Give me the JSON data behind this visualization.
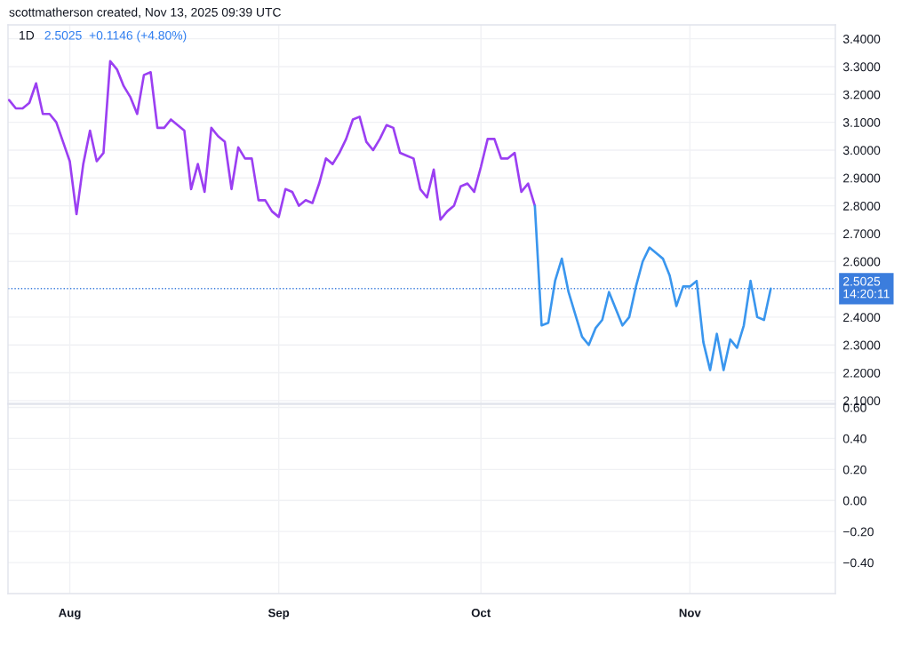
{
  "chart_data": [
    {
      "type": "line",
      "title": "scottmatherson created, Nov 13, 2025 09:39 UTC",
      "subtitle": "1D",
      "annotations": [
        "2.5025  +0.1146 (+4.80%)",
        "14:20:11"
      ],
      "series": [
        {
          "color": "#9b3ff2",
          "x": [
            "2025-07-23",
            "2025-07-24",
            "2025-07-25",
            "2025-07-26",
            "2025-07-27",
            "2025-07-28",
            "2025-07-29",
            "2025-07-30",
            "2025-07-31",
            "2025-08-01",
            "2025-08-02",
            "2025-08-03",
            "2025-08-04",
            "2025-08-05",
            "2025-08-06",
            "2025-08-07",
            "2025-08-08",
            "2025-08-09",
            "2025-08-10",
            "2025-08-11",
            "2025-08-12",
            "2025-08-13",
            "2025-08-14",
            "2025-08-15",
            "2025-08-16",
            "2025-08-17",
            "2025-08-18",
            "2025-08-19",
            "2025-08-20",
            "2025-08-21",
            "2025-08-22",
            "2025-08-23",
            "2025-08-24",
            "2025-08-25",
            "2025-08-26",
            "2025-08-27",
            "2025-08-28",
            "2025-08-29",
            "2025-08-30",
            "2025-08-31",
            "2025-09-01",
            "2025-09-02",
            "2025-09-03",
            "2025-09-04",
            "2025-09-05",
            "2025-09-06",
            "2025-09-07",
            "2025-09-08",
            "2025-09-09",
            "2025-09-10",
            "2025-09-11",
            "2025-09-12",
            "2025-09-13",
            "2025-09-14",
            "2025-09-15",
            "2025-09-16",
            "2025-09-17",
            "2025-09-18",
            "2025-09-19",
            "2025-09-20",
            "2025-09-21",
            "2025-09-22",
            "2025-09-23",
            "2025-09-24",
            "2025-09-25",
            "2025-09-26",
            "2025-09-27",
            "2025-09-28",
            "2025-09-29",
            "2025-09-30",
            "2025-10-01",
            "2025-10-02",
            "2025-10-03",
            "2025-10-04",
            "2025-10-05",
            "2025-10-06",
            "2025-10-07",
            "2025-10-08",
            "2025-10-09"
          ],
          "values": [
            3.18,
            3.15,
            3.15,
            3.17,
            3.24,
            3.13,
            3.13,
            3.1,
            3.03,
            2.96,
            2.77,
            2.95,
            3.07,
            2.96,
            2.99,
            3.32,
            3.29,
            3.23,
            3.19,
            3.13,
            3.27,
            3.28,
            3.08,
            3.08,
            3.11,
            3.09,
            3.07,
            2.86,
            2.95,
            2.85,
            3.08,
            3.05,
            3.03,
            2.86,
            3.01,
            2.97,
            2.97,
            2.82,
            2.82,
            2.78,
            2.76,
            2.86,
            2.85,
            2.8,
            2.82,
            2.81,
            2.88,
            2.97,
            2.95,
            2.99,
            3.04,
            3.11,
            3.12,
            3.03,
            3.0,
            3.04,
            3.09,
            3.08,
            2.99,
            2.98,
            2.97,
            2.86,
            2.83,
            2.93,
            2.75,
            2.78,
            2.8,
            2.87,
            2.88,
            2.85,
            2.94,
            3.04,
            3.04,
            2.97,
            2.97,
            2.99,
            2.85,
            2.88,
            2.8
          ]
        },
        {
          "color": "#3a96ee",
          "x": [
            "2025-10-09",
            "2025-10-10",
            "2025-10-11",
            "2025-10-12",
            "2025-10-13",
            "2025-10-14",
            "2025-10-15",
            "2025-10-16",
            "2025-10-17",
            "2025-10-18",
            "2025-10-19",
            "2025-10-20",
            "2025-10-21",
            "2025-10-22",
            "2025-10-23",
            "2025-10-24",
            "2025-10-25",
            "2025-10-26",
            "2025-10-27",
            "2025-10-28",
            "2025-10-29",
            "2025-10-30",
            "2025-10-31",
            "2025-11-01",
            "2025-11-02",
            "2025-11-03",
            "2025-11-04",
            "2025-11-05",
            "2025-11-06",
            "2025-11-07",
            "2025-11-08",
            "2025-11-09",
            "2025-11-10",
            "2025-11-11",
            "2025-11-12",
            "2025-11-13"
          ],
          "values": [
            2.8,
            2.37,
            2.38,
            2.53,
            2.61,
            2.49,
            2.41,
            2.33,
            2.3,
            2.36,
            2.39,
            2.49,
            2.43,
            2.37,
            2.4,
            2.51,
            2.6,
            2.65,
            2.63,
            2.61,
            2.55,
            2.44,
            2.51,
            2.51,
            2.53,
            2.31,
            2.21,
            2.34,
            2.21,
            2.32,
            2.29,
            2.37,
            2.53,
            2.4,
            2.39,
            2.5025
          ]
        }
      ],
      "xlim": [
        "2025-07-22T20:00",
        "2025-11-22T14:00"
      ],
      "xticks": [
        {
          "value": "2025-08-01",
          "label": null
        },
        {
          "value": "2025-09-01",
          "label": null
        },
        {
          "value": "2025-10-01",
          "label": null
        },
        {
          "value": "2025-11-01",
          "label": null
        }
      ],
      "ylim": [
        2.09,
        3.45
      ],
      "yticks": [
        {
          "value": 2.1,
          "label": "2.1000"
        },
        {
          "value": 2.2,
          "label": "2.2000"
        },
        {
          "value": 2.3,
          "label": "2.3000"
        },
        {
          "value": 2.4,
          "label": "2.4000"
        },
        {
          "value": 2.6,
          "label": "2.6000"
        },
        {
          "value": 2.7,
          "label": "2.7000"
        },
        {
          "value": 2.8,
          "label": "2.8000"
        },
        {
          "value": 2.9,
          "label": "2.9000"
        },
        {
          "value": 3.0,
          "label": "3.0000"
        },
        {
          "value": 3.1,
          "label": "3.1000"
        },
        {
          "value": 3.2,
          "label": "3.2000"
        },
        {
          "value": 3.3,
          "label": "3.3000"
        },
        {
          "value": 3.4,
          "label": "3.4000"
        }
      ],
      "ref_lines": [
        {
          "axis": "y",
          "value": 2.5025,
          "label": "2.5025",
          "color": "#3b7ddd",
          "line_style": "dotted"
        }
      ],
      "grid": true,
      "marker": "none",
      "line_style": "solid",
      "tick_labels": "y"
    },
    {
      "type": "line",
      "xlim": [
        "2025-07-22T20:00",
        "2025-11-22T14:00"
      ],
      "xticks": [
        {
          "value": "2025-08-01",
          "label": "Aug"
        },
        {
          "value": "2025-09-01",
          "label": "Sep"
        },
        {
          "value": "2025-10-01",
          "label": "Oct"
        },
        {
          "value": "2025-11-01",
          "label": "Nov"
        }
      ],
      "ylim": [
        -0.6,
        0.62
      ],
      "yticks": [
        {
          "value": 0.6,
          "label": "0.60"
        },
        {
          "value": 0.4,
          "label": "0.40"
        },
        {
          "value": 0.2,
          "label": "0.20"
        },
        {
          "value": 0.0,
          "label": "0.00"
        },
        {
          "value": -0.2,
          "label": "−0.20"
        },
        {
          "value": -0.4,
          "label": "−0.40"
        }
      ],
      "grid": true
    }
  ]
}
